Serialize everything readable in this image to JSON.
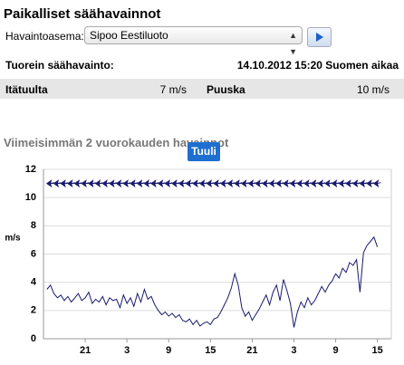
{
  "header": {
    "title": "Paikalliset säähavainnot"
  },
  "station": {
    "label": "Havaintoasema:",
    "selected": "Sipoo Eestiluoto"
  },
  "latest": {
    "label": "Tuorein säähavainto:",
    "time": "14.10.2012 15:20 Suomen aikaa"
  },
  "wind": {
    "direction": "Itätuulta",
    "speed": "7 m/s",
    "gust_label": "Puuska",
    "gust": "10 m/s"
  },
  "section_title": "Viimeisimmän 2 vuorokauden havainnot",
  "tab": "Tuuli",
  "chart_data": {
    "type": "line",
    "ylabel": "m/s",
    "ylim": [
      0,
      12
    ],
    "yticks": [
      0,
      2,
      4,
      6,
      8,
      10,
      12
    ],
    "xlim": [
      0,
      50
    ],
    "xticks": [
      {
        "value": 6,
        "label": "21"
      },
      {
        "value": 12,
        "label": "3"
      },
      {
        "value": 18,
        "label": "9"
      },
      {
        "value": 24,
        "label": "15"
      },
      {
        "value": 30,
        "label": "21"
      },
      {
        "value": 36,
        "label": "3"
      },
      {
        "value": 42,
        "label": "9"
      },
      {
        "value": 48,
        "label": "15"
      }
    ],
    "grid": true,
    "series": [
      {
        "color": "#1a1a6e",
        "marker": "none",
        "x": [
          0.5,
          1,
          1.5,
          2,
          2.5,
          3,
          3.5,
          4,
          4.5,
          5,
          5.5,
          6,
          6.5,
          7,
          7.5,
          8,
          8.5,
          9,
          9.5,
          10,
          10.5,
          11,
          11.5,
          12,
          12.5,
          13,
          13.5,
          14,
          14.5,
          15,
          15.5,
          16,
          16.5,
          17,
          17.5,
          18,
          18.5,
          19,
          19.5,
          20,
          20.5,
          21,
          21.5,
          22,
          22.5,
          23,
          23.5,
          24,
          24.5,
          25,
          25.5,
          26,
          26.5,
          27,
          27.5,
          28,
          28.5,
          29,
          29.5,
          30,
          30.5,
          31,
          31.5,
          32,
          32.5,
          33,
          33.5,
          34,
          34.5,
          35,
          35.5,
          36,
          36.5,
          37,
          37.5,
          38,
          38.5,
          39,
          39.5,
          40,
          40.5,
          41,
          41.5,
          42,
          42.5,
          43,
          43.5,
          44,
          44.5,
          45,
          45.5,
          46,
          46.5,
          47,
          47.5,
          48
        ],
        "values": [
          3.5,
          3.8,
          3.2,
          2.9,
          3.1,
          2.7,
          3.0,
          2.6,
          2.9,
          3.2,
          2.7,
          2.9,
          3.3,
          2.5,
          2.8,
          2.6,
          3.0,
          2.4,
          2.9,
          2.7,
          2.8,
          2.2,
          3.1,
          2.5,
          2.9,
          2.3,
          3.2,
          2.6,
          3.5,
          2.8,
          3.0,
          2.4,
          2.0,
          1.7,
          1.9,
          1.6,
          1.8,
          1.5,
          1.7,
          1.3,
          1.2,
          1.4,
          1.0,
          1.3,
          0.9,
          1.1,
          1.2,
          1.0,
          1.4,
          1.5,
          1.9,
          2.4,
          2.9,
          3.6,
          4.6,
          3.8,
          2.2,
          1.6,
          1.9,
          1.3,
          1.7,
          2.1,
          2.6,
          3.1,
          2.4,
          3.3,
          3.8,
          2.7,
          4.2,
          3.4,
          2.5,
          0.8,
          1.9,
          2.6,
          2.2,
          2.9,
          2.4,
          2.7,
          3.2,
          3.7,
          3.3,
          3.8,
          4.1,
          4.6,
          4.3,
          5.0,
          4.7,
          5.4,
          5.2,
          5.6,
          3.3,
          6.1,
          6.6,
          6.9,
          7.2,
          6.5
        ]
      },
      {
        "color": "#1a1a6e",
        "marker": "arrow",
        "x": [
          1,
          2,
          3,
          4,
          5,
          6,
          7,
          8,
          9,
          10,
          11,
          12,
          13,
          14,
          15,
          16,
          17,
          18,
          19,
          20,
          21,
          22,
          23,
          24,
          25,
          26,
          27,
          28,
          29,
          30,
          31,
          32,
          33,
          34,
          35,
          36,
          37,
          38,
          39,
          40,
          41,
          42,
          43,
          44,
          45,
          46,
          47,
          48
        ],
        "values": [
          11,
          11,
          11,
          11,
          11,
          11,
          11,
          11,
          11,
          11,
          11,
          11,
          11,
          11,
          11,
          11,
          11,
          11,
          11,
          11,
          11,
          11,
          11,
          11,
          11,
          11,
          11,
          11,
          11,
          11,
          11,
          11,
          11,
          11,
          11,
          11,
          11,
          11,
          11,
          11,
          11,
          11,
          11,
          11,
          11,
          11,
          11,
          11
        ]
      }
    ]
  }
}
